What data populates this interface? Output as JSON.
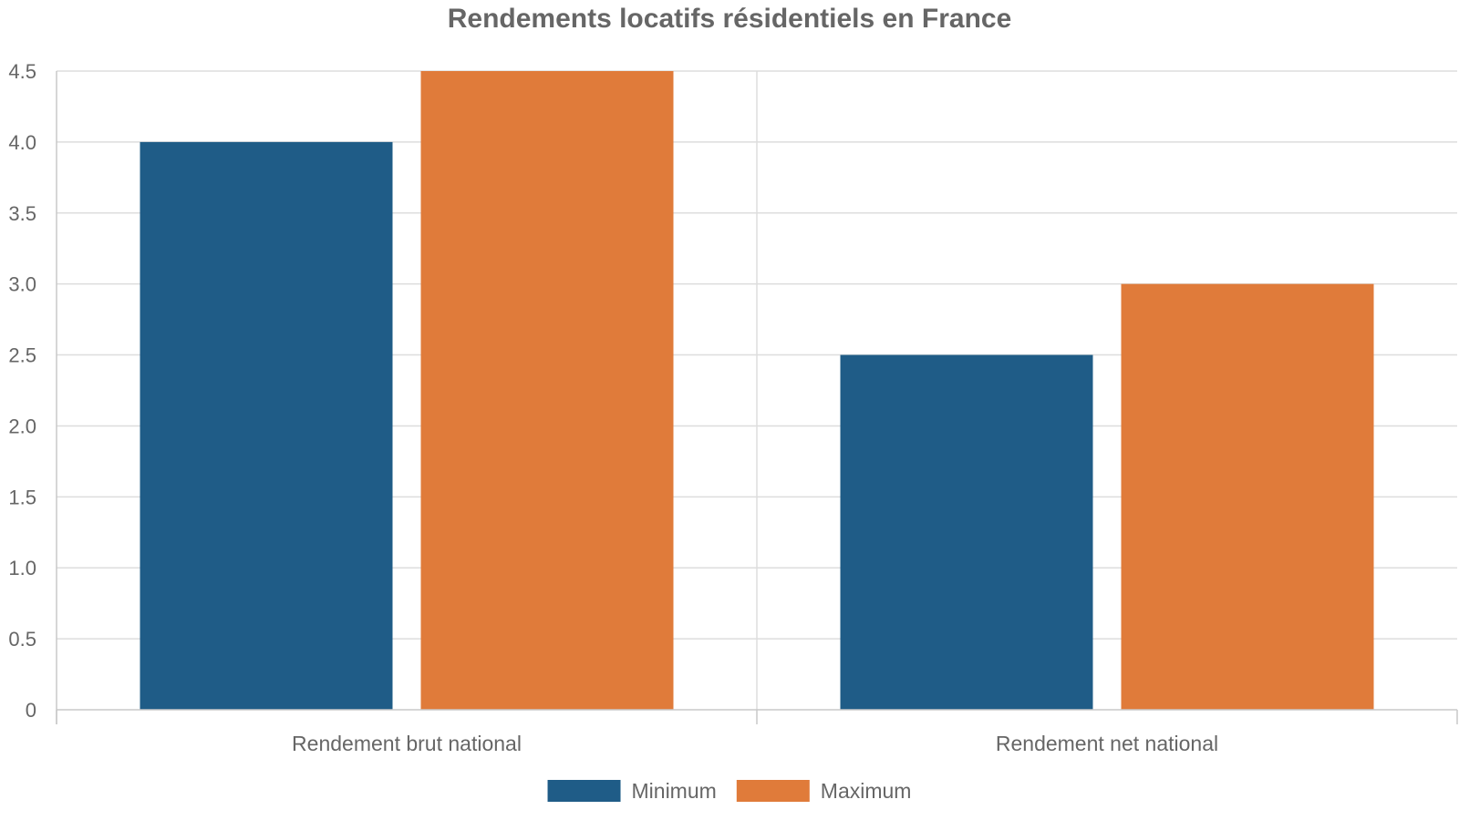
{
  "chart_data": {
    "type": "bar",
    "title": "Rendements locatifs résidentiels en France",
    "xlabel": "",
    "ylabel": "",
    "categories": [
      "Rendement brut national",
      "Rendement net national"
    ],
    "series": [
      {
        "name": "Minimum",
        "values": [
          4.0,
          2.5
        ],
        "color": "#1f5c87"
      },
      {
        "name": "Maximum",
        "values": [
          4.5,
          3.0
        ],
        "color": "#e07b3a"
      }
    ],
    "ylim": [
      0,
      4.5
    ],
    "yticks": [
      "0",
      "0.5",
      "1.0",
      "1.5",
      "2.0",
      "2.5",
      "3.0",
      "3.5",
      "4.0",
      "4.5"
    ],
    "grid": true,
    "legend_position": "bottom-center"
  }
}
